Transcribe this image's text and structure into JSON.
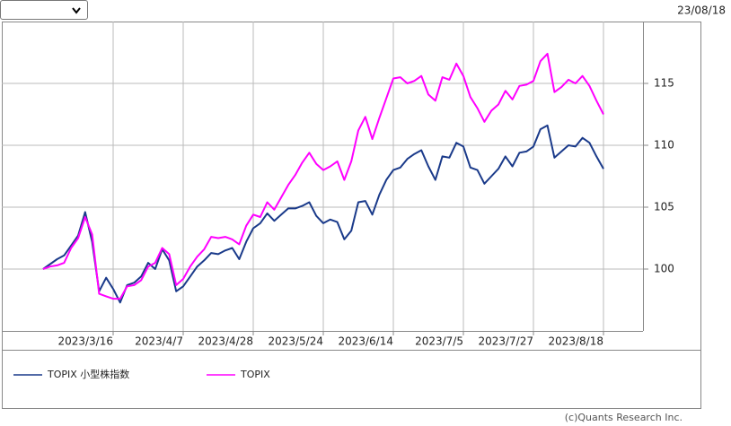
{
  "header": {
    "date": "23/08/18"
  },
  "chart_data": {
    "type": "line",
    "categories": [
      null,
      null,
      null,
      null,
      null,
      null,
      null,
      null,
      null,
      null,
      "2023/3/16",
      null,
      null,
      null,
      null,
      null,
      null,
      null,
      null,
      null,
      "2023/4/7",
      null,
      null,
      null,
      null,
      null,
      null,
      null,
      null,
      null,
      "2023/4/28",
      null,
      null,
      null,
      null,
      null,
      null,
      null,
      null,
      null,
      "2023/5/24",
      null,
      null,
      null,
      null,
      null,
      null,
      null,
      null,
      null,
      "2023/6/14",
      null,
      null,
      null,
      null,
      null,
      null,
      null,
      null,
      null,
      "2023/7/5",
      null,
      null,
      null,
      null,
      null,
      null,
      null,
      null,
      null,
      "2023/7/27",
      null,
      null,
      null,
      null,
      null,
      null,
      null,
      null,
      null,
      "2023/8/18"
    ],
    "series": [
      {
        "name": "TOPIX 小型株指数",
        "color": "#1a3a8a",
        "values": [
          100,
          100.4,
          100.8,
          101.1,
          101.9,
          102.7,
          104.6,
          102.2,
          98.2,
          99.3,
          98.4,
          97.3,
          98.7,
          98.9,
          99.4,
          100.5,
          100.0,
          101.6,
          100.7,
          98.2,
          98.6,
          99.4,
          100.2,
          100.7,
          101.3,
          101.2,
          101.5,
          101.7,
          100.8,
          102.2,
          103.3,
          103.7,
          104.5,
          103.9,
          104.4,
          104.9,
          104.9,
          105.1,
          105.4,
          104.3,
          103.7,
          104.0,
          103.8,
          102.4,
          103.1,
          105.4,
          105.5,
          104.4,
          106.0,
          107.2,
          108.0,
          108.2,
          108.9,
          109.3,
          109.6,
          108.3,
          107.2,
          109.1,
          109.0,
          110.2,
          109.9,
          108.2,
          108.0,
          106.9,
          107.5,
          108.1,
          109.1,
          108.3,
          109.4,
          109.5,
          109.9,
          111.3,
          111.6,
          109.0,
          109.5,
          110.0,
          109.9,
          110.6,
          110.2,
          109.1,
          108.1
        ]
      },
      {
        "name": "TOPIX",
        "color": "#ff00ff",
        "values": [
          100,
          100.2,
          100.3,
          100.5,
          101.7,
          102.5,
          104.2,
          102.8,
          98.0,
          97.8,
          97.6,
          97.6,
          98.6,
          98.7,
          99.1,
          100.2,
          100.5,
          101.7,
          101.2,
          98.7,
          99.2,
          100.2,
          101.0,
          101.6,
          102.6,
          102.5,
          102.6,
          102.4,
          102.0,
          103.5,
          104.4,
          104.2,
          105.4,
          104.8,
          105.8,
          106.8,
          107.6,
          108.6,
          109.4,
          108.5,
          108.0,
          108.3,
          108.7,
          107.2,
          108.7,
          111.2,
          112.3,
          110.5,
          112.2,
          113.8,
          115.4,
          115.5,
          115.0,
          115.2,
          115.6,
          114.1,
          113.6,
          115.5,
          115.3,
          116.6,
          115.6,
          113.9,
          113.0,
          111.9,
          112.8,
          113.3,
          114.4,
          113.7,
          114.8,
          114.9,
          115.2,
          116.8,
          117.4,
          114.3,
          114.7,
          115.3,
          115.0,
          115.6,
          114.8,
          113.6,
          112.5
        ]
      }
    ],
    "ylim": [
      95,
      120
    ],
    "yticks": [
      100,
      105,
      110,
      115
    ],
    "grid": true
  },
  "footer": {
    "copyright": "(c)Quants Research Inc."
  }
}
